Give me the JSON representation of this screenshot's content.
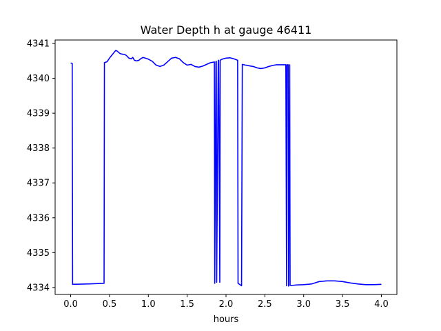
{
  "chart_data": {
    "type": "line",
    "title": "Water Depth h at gauge 46411",
    "xlabel": "hours",
    "ylabel": "",
    "xlim": [
      -0.2,
      4.2
    ],
    "ylim": [
      4333.8,
      4341.1
    ],
    "xticks": [
      0.0,
      0.5,
      1.0,
      1.5,
      2.0,
      2.5,
      3.0,
      3.5,
      4.0
    ],
    "xtick_labels": [
      "0.0",
      "0.5",
      "1.0",
      "1.5",
      "2.0",
      "2.5",
      "3.0",
      "3.5",
      "4.0"
    ],
    "yticks": [
      4334,
      4335,
      4336,
      4337,
      4338,
      4339,
      4340,
      4341
    ],
    "ytick_labels": [
      "4334",
      "4335",
      "4336",
      "4337",
      "4338",
      "4339",
      "4340",
      "4341"
    ],
    "grid": false,
    "series": [
      {
        "color": "#0000ff",
        "x": [
          0.0,
          0.02,
          0.025,
          0.2,
          0.43,
          0.435,
          0.47,
          0.5,
          0.55,
          0.58,
          0.6,
          0.63,
          0.65,
          0.7,
          0.72,
          0.75,
          0.78,
          0.8,
          0.82,
          0.85,
          0.88,
          0.9,
          0.93,
          0.96,
          1.0,
          1.05,
          1.1,
          1.15,
          1.2,
          1.25,
          1.3,
          1.35,
          1.4,
          1.45,
          1.5,
          1.55,
          1.6,
          1.65,
          1.7,
          1.75,
          1.8,
          1.85,
          1.855,
          1.87,
          1.875,
          1.88,
          1.9,
          1.905,
          1.92,
          1.925,
          1.95,
          2.0,
          2.05,
          2.1,
          2.15,
          2.155,
          2.2,
          2.21,
          2.25,
          2.3,
          2.35,
          2.4,
          2.45,
          2.5,
          2.55,
          2.6,
          2.65,
          2.7,
          2.77,
          2.78,
          2.785,
          2.8,
          2.805,
          2.82,
          2.825,
          2.85,
          2.9,
          3.0,
          3.1,
          3.2,
          3.3,
          3.4,
          3.5,
          3.6,
          3.7,
          3.8,
          3.9,
          4.0
        ],
        "y": [
          4340.44,
          4340.43,
          4334.09,
          4334.1,
          4334.12,
          4340.45,
          4340.48,
          4340.58,
          4340.72,
          4340.8,
          4340.78,
          4340.72,
          4340.7,
          4340.68,
          4340.65,
          4340.58,
          4340.56,
          4340.6,
          4340.52,
          4340.5,
          4340.52,
          4340.56,
          4340.6,
          4340.58,
          4340.55,
          4340.49,
          4340.38,
          4340.34,
          4340.38,
          4340.48,
          4340.58,
          4340.6,
          4340.56,
          4340.45,
          4340.38,
          4340.4,
          4340.34,
          4340.32,
          4340.35,
          4340.4,
          4340.45,
          4340.47,
          4334.12,
          4340.48,
          4340.49,
          4334.15,
          4340.5,
          4340.52,
          4334.15,
          4340.52,
          4340.55,
          4340.58,
          4340.59,
          4340.56,
          4340.52,
          4334.12,
          4334.05,
          4340.4,
          4340.38,
          4340.36,
          4340.34,
          4340.3,
          4340.28,
          4340.3,
          4340.34,
          4340.37,
          4340.39,
          4340.39,
          4340.39,
          4334.05,
          4340.39,
          4340.39,
          4334.04,
          4340.39,
          4334.06,
          4334.06,
          4334.07,
          4334.08,
          4334.1,
          4334.17,
          4334.19,
          4334.19,
          4334.17,
          4334.13,
          4334.1,
          4334.08,
          4334.08,
          4334.09
        ]
      }
    ]
  }
}
